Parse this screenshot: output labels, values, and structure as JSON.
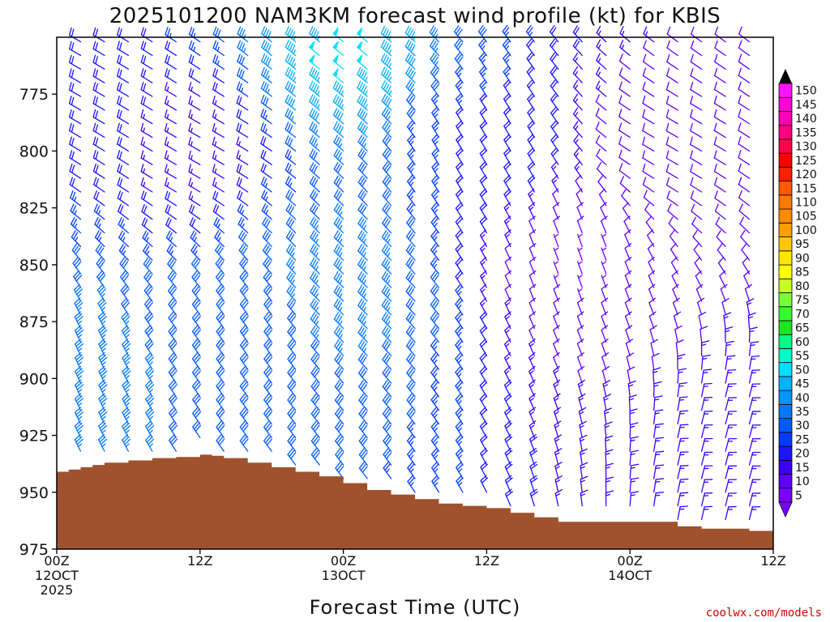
{
  "chart_data": {
    "type": "wind-barb-profile",
    "title": "2025101200 NAM3KM forecast wind profile (kt) for KBIS",
    "xlabel": "Forecast Time (UTC)",
    "ylabel": "",
    "credit": "coolwx.com/models",
    "x_hours_range": [
      0,
      60
    ],
    "y_pressure_range": [
      975,
      750
    ],
    "y_ticks": [
      775,
      800,
      825,
      850,
      875,
      900,
      925,
      950,
      975
    ],
    "x_ticks": [
      {
        "hour": 0,
        "lines": [
          "00Z",
          "12OCT",
          "2025"
        ]
      },
      {
        "hour": 12,
        "lines": [
          "12Z"
        ]
      },
      {
        "hour": 24,
        "lines": [
          "00Z",
          "13OCT"
        ]
      },
      {
        "hour": 36,
        "lines": [
          "12Z"
        ]
      },
      {
        "hour": 48,
        "lines": [
          "00Z",
          "14OCT"
        ]
      },
      {
        "hour": 60,
        "lines": [
          "12Z"
        ]
      }
    ],
    "colorbar": {
      "units": "kt",
      "levels": [
        5,
        10,
        15,
        20,
        25,
        30,
        35,
        40,
        45,
        50,
        55,
        60,
        65,
        70,
        75,
        80,
        85,
        90,
        95,
        100,
        105,
        110,
        115,
        120,
        125,
        130,
        135,
        140,
        145,
        150
      ],
      "colors": [
        "#7a00ff",
        "#6000ff",
        "#3c00ff",
        "#1c14ff",
        "#003cff",
        "#005aff",
        "#0078ff",
        "#0096ff",
        "#00b4ff",
        "#00e0ff",
        "#00ffc8",
        "#00ff8a",
        "#1ee61e",
        "#32ff32",
        "#7aff32",
        "#c8ff1e",
        "#ffff00",
        "#ffe600",
        "#ffc800",
        "#ffa000",
        "#ff8c00",
        "#ff7800",
        "#ff5a00",
        "#ff1e00",
        "#ff0000",
        "#ff004a",
        "#ff0080",
        "#ff00b4",
        "#ff00dc",
        "#ff14ff"
      ]
    },
    "wind_model": {
      "pressure_step_hpa": 6,
      "hour_step": 2,
      "samples": [
        {
          "hour": 0,
          "p_hpa": 775,
          "speed_kt": 22,
          "from_deg": 300
        },
        {
          "hour": 0,
          "p_hpa": 900,
          "speed_kt": 36,
          "from_deg": 335
        },
        {
          "hour": 12,
          "p_hpa": 800,
          "speed_kt": 15,
          "from_deg": 300
        },
        {
          "hour": 16,
          "p_hpa": 880,
          "speed_kt": 30,
          "from_deg": 325
        },
        {
          "hour": 24,
          "p_hpa": 760,
          "speed_kt": 48,
          "from_deg": 310
        },
        {
          "hour": 24,
          "p_hpa": 860,
          "speed_kt": 35,
          "from_deg": 315
        },
        {
          "hour": 36,
          "p_hpa": 800,
          "speed_kt": 22,
          "from_deg": 330
        },
        {
          "hour": 44,
          "p_hpa": 850,
          "speed_kt": 7,
          "from_deg": 340
        },
        {
          "hour": 52,
          "p_hpa": 800,
          "speed_kt": 9,
          "from_deg": 300
        },
        {
          "hour": 58,
          "p_hpa": 930,
          "speed_kt": 14,
          "from_deg": 15
        }
      ]
    },
    "surface_pressure": {
      "hours": [
        0,
        1,
        2,
        3,
        4,
        6,
        8,
        10,
        12,
        13,
        14,
        16,
        18,
        20,
        22,
        24,
        26,
        28,
        30,
        32,
        34,
        36,
        38,
        40,
        42,
        44,
        46,
        48,
        50,
        52,
        54,
        56,
        58,
        60
      ],
      "values": [
        941,
        940,
        939,
        938,
        937,
        936,
        935,
        934.5,
        933.5,
        934,
        935,
        937,
        939,
        941,
        943,
        946,
        949,
        951,
        953,
        955,
        956,
        957,
        959,
        961,
        963,
        963,
        963,
        963,
        963,
        965,
        966,
        966,
        967,
        967
      ]
    }
  }
}
